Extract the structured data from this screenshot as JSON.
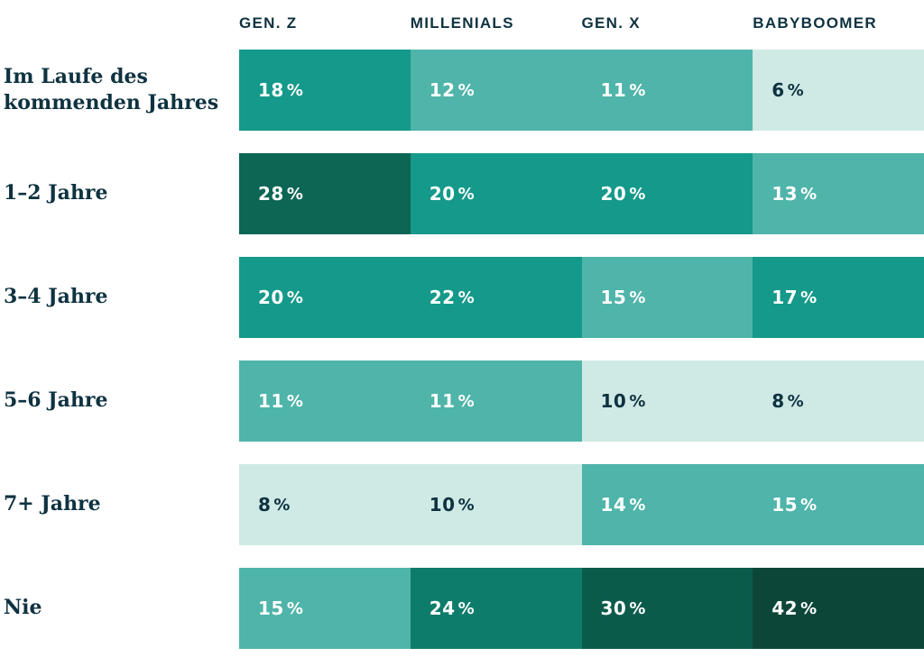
{
  "chart_data": {
    "type": "heatmap",
    "unit": "%",
    "legend_position": "none",
    "columns": [
      "GEN. Z",
      "MILLENIALS",
      "GEN. X",
      "BABYBOOMER"
    ],
    "rows": [
      {
        "label": "Im Laufe des kommenden Jahres",
        "values": [
          18,
          12,
          11,
          6
        ],
        "cells": [
          {
            "value": 18,
            "bg": "#14998a",
            "fg": "#ffffff"
          },
          {
            "value": 12,
            "bg": "#4fb4a9",
            "fg": "#ffffff"
          },
          {
            "value": 11,
            "bg": "#4fb4a9",
            "fg": "#ffffff"
          },
          {
            "value": 6,
            "bg": "#cfeae5",
            "fg": "#0e3240"
          }
        ]
      },
      {
        "label": "1–2 Jahre",
        "values": [
          28,
          20,
          20,
          13
        ],
        "cells": [
          {
            "value": 28,
            "bg": "#0d6554",
            "fg": "#ffffff"
          },
          {
            "value": 20,
            "bg": "#14998a",
            "fg": "#ffffff"
          },
          {
            "value": 20,
            "bg": "#14998a",
            "fg": "#ffffff"
          },
          {
            "value": 13,
            "bg": "#4fb4a9",
            "fg": "#ffffff"
          }
        ]
      },
      {
        "label": "3–4 Jahre",
        "values": [
          20,
          22,
          15,
          17
        ],
        "cells": [
          {
            "value": 20,
            "bg": "#14998a",
            "fg": "#ffffff"
          },
          {
            "value": 22,
            "bg": "#14998a",
            "fg": "#ffffff"
          },
          {
            "value": 15,
            "bg": "#4fb4a9",
            "fg": "#ffffff"
          },
          {
            "value": 17,
            "bg": "#14998a",
            "fg": "#ffffff"
          }
        ]
      },
      {
        "label": "5–6 Jahre",
        "values": [
          11,
          11,
          10,
          8
        ],
        "cells": [
          {
            "value": 11,
            "bg": "#4fb4a9",
            "fg": "#ffffff"
          },
          {
            "value": 11,
            "bg": "#4fb4a9",
            "fg": "#ffffff"
          },
          {
            "value": 10,
            "bg": "#cfeae5",
            "fg": "#0e3240"
          },
          {
            "value": 8,
            "bg": "#cfeae5",
            "fg": "#0e3240"
          }
        ]
      },
      {
        "label": "7+ Jahre",
        "values": [
          8,
          10,
          14,
          15
        ],
        "cells": [
          {
            "value": 8,
            "bg": "#cfeae5",
            "fg": "#0e3240"
          },
          {
            "value": 10,
            "bg": "#cfeae5",
            "fg": "#0e3240"
          },
          {
            "value": 14,
            "bg": "#4fb4a9",
            "fg": "#ffffff"
          },
          {
            "value": 15,
            "bg": "#4fb4a9",
            "fg": "#ffffff"
          }
        ]
      },
      {
        "label": "Nie",
        "values": [
          15,
          24,
          30,
          42
        ],
        "cells": [
          {
            "value": 15,
            "bg": "#4fb4a9",
            "fg": "#ffffff"
          },
          {
            "value": 24,
            "bg": "#0e7c6b",
            "fg": "#ffffff"
          },
          {
            "value": 30,
            "bg": "#0b5b4b",
            "fg": "#ffffff"
          },
          {
            "value": 42,
            "bg": "#0c4639",
            "fg": "#ffffff"
          }
        ]
      }
    ],
    "colors": {
      "label_text": "#0e3240",
      "background": "#ffffff",
      "scale_lightest": "#cfeae5",
      "scale_light": "#4fb4a9",
      "scale_medium": "#14998a",
      "scale_dark": "#0d6554",
      "scale_darkest": "#0c4639"
    }
  }
}
